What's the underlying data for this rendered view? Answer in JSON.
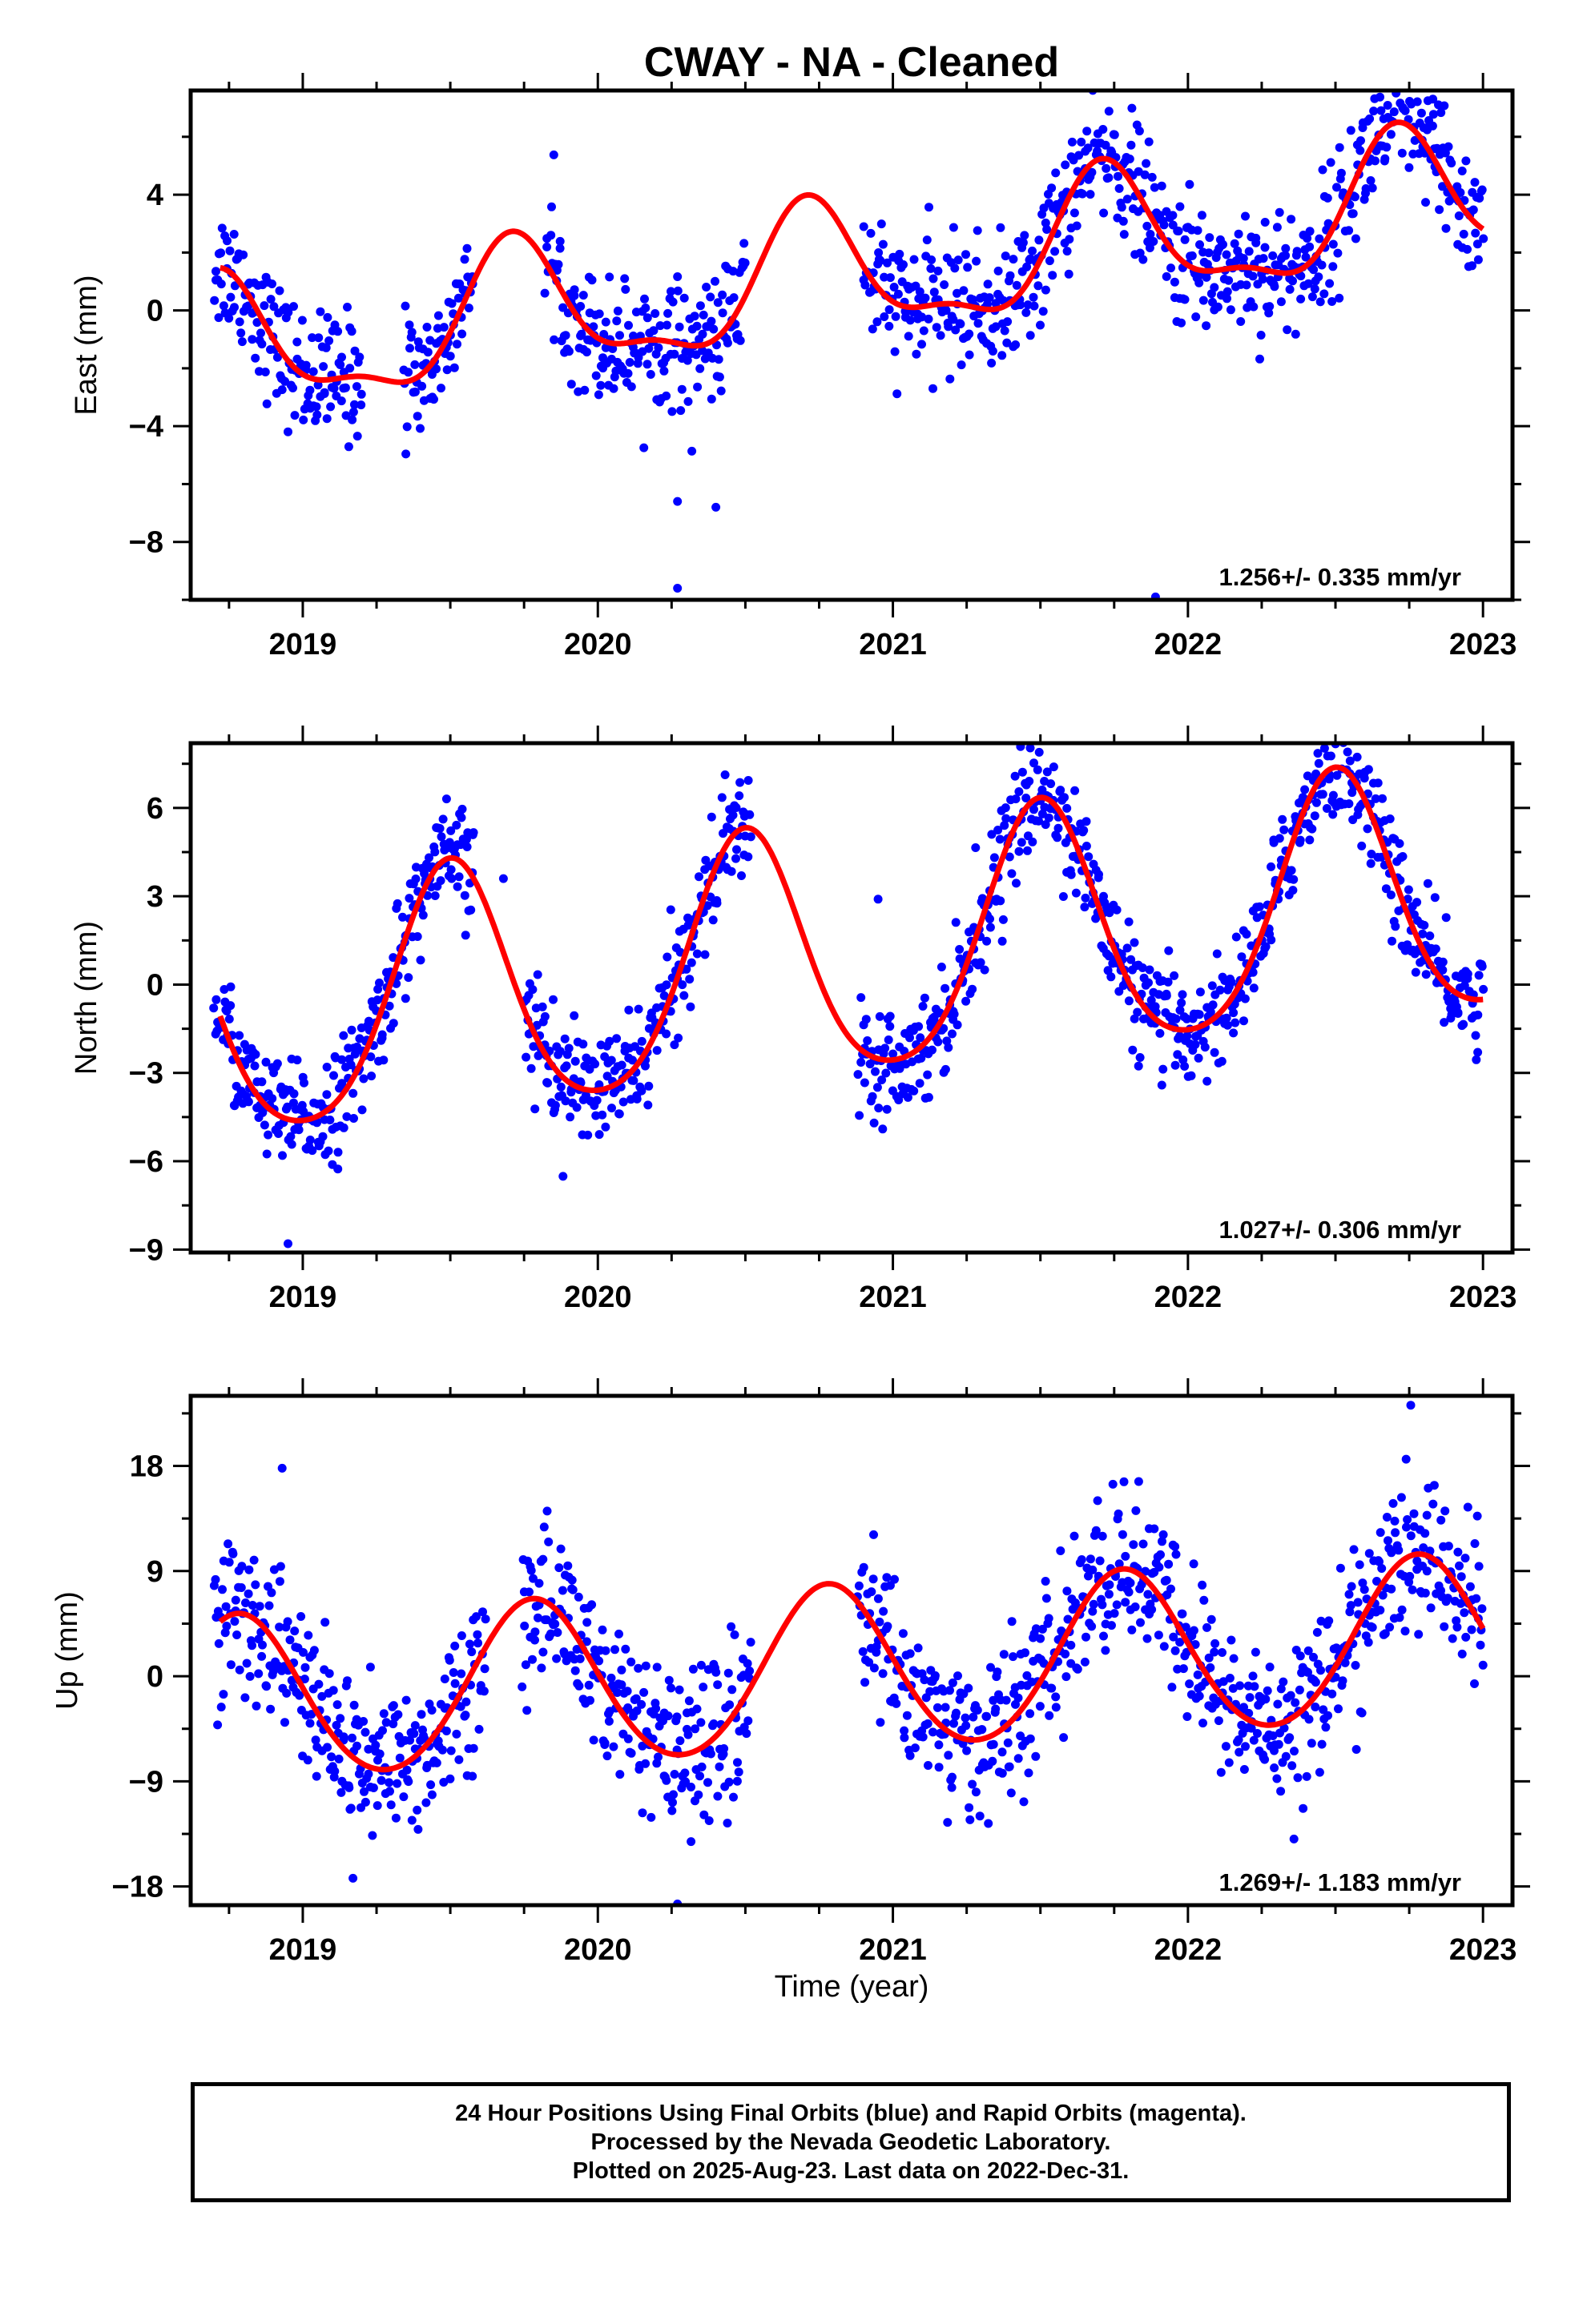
{
  "title": "CWAY  - NA - Cleaned",
  "xlabel": "Time (year)",
  "caption": [
    "24 Hour Positions Using Final Orbits (blue) and Rapid Orbits (magenta).",
    "Processed by the Nevada Geodetic Laboratory.",
    "Plotted on 2025-Aug-23. Last data on 2022-Dec-31."
  ],
  "colors": {
    "points": "#0000ff",
    "fit": "#ff0000",
    "frame": "#000000"
  },
  "chart_data": [
    {
      "type": "scatter",
      "ylabel": "East (mm)",
      "rate": "1.256+/- 0.335 mm/yr",
      "xlim": [
        2018.62,
        2023.1
      ],
      "ylim": [
        -10,
        7.6
      ],
      "xticks": [
        2019,
        2020,
        2021,
        2022,
        2023
      ],
      "xtick_labels": [
        "2019",
        "2020",
        "2021",
        "2022",
        "2023"
      ],
      "yticks": [
        -8,
        -4,
        0,
        4
      ],
      "ytick_labels": [
        "−8",
        "−4",
        "0",
        "4"
      ],
      "series": [
        {
          "kind": "points",
          "x_start": 2018.7,
          "x_end": 2023.0,
          "n": 1250,
          "gaps": [
            [
              2019.2,
              2019.34
            ],
            [
              2019.58,
              2019.82
            ],
            [
              2020.5,
              2020.9
            ]
          ],
          "trend_at_start": -1.5,
          "trend_rate": 1.256,
          "annual_amplitude": 2.2,
          "annual_peak": 2018.72,
          "semiannual_amplitude": 0.8,
          "semiannual_peak": 2018.7,
          "scatter": 1.1,
          "outliers": [
            [
              2020.27,
              -9.6
            ],
            [
              2020.27,
              -6.6
            ],
            [
              2020.4,
              -6.8
            ],
            [
              2021.89,
              -9.9
            ],
            [
              2022.83,
              7.3
            ]
          ]
        },
        {
          "kind": "fit",
          "x_start": 2018.72,
          "x_end": 2023.0,
          "trend_at_start": -1.5,
          "trend_rate": 1.256,
          "annual_amplitude": 2.2,
          "annual_peak": 2018.72,
          "semiannual_amplitude": 0.8,
          "semiannual_peak": 2018.7
        }
      ]
    },
    {
      "type": "scatter",
      "ylabel": "North (mm)",
      "rate": "1.027+/- 0.306 mm/yr",
      "xlim": [
        2018.62,
        2023.1
      ],
      "ylim": [
        -9.1,
        8.2
      ],
      "xticks": [
        2019,
        2020,
        2021,
        2022,
        2023
      ],
      "xtick_labels": [
        "2019",
        "2020",
        "2021",
        "2022",
        "2023"
      ],
      "yticks": [
        -9,
        -6,
        -3,
        0,
        3,
        6
      ],
      "ytick_labels": [
        "−9",
        "−6",
        "−3",
        "0",
        "3",
        "6"
      ],
      "series": [
        {
          "kind": "points",
          "x_start": 2018.7,
          "x_end": 2023.0,
          "n": 1350,
          "gaps": [
            [
              2019.58,
              2019.75
            ],
            [
              2020.52,
              2020.88
            ]
          ],
          "trend_at_start": -1.3,
          "trend_rate": 1.027,
          "annual_amplitude": 4.2,
          "annual_peak": 2019.5,
          "semiannual_amplitude": 0.6,
          "semiannual_peak": 2019.5,
          "scatter": 0.9,
          "outliers": [
            [
              2018.95,
              -8.8
            ],
            [
              2019.68,
              3.6
            ],
            [
              2020.95,
              2.9
            ]
          ]
        },
        {
          "kind": "fit",
          "x_start": 2018.72,
          "x_end": 2023.0,
          "trend_at_start": -1.3,
          "trend_rate": 1.027,
          "annual_amplitude": 4.2,
          "annual_peak": 2019.5,
          "semiannual_amplitude": 0.6,
          "semiannual_peak": 2019.5
        }
      ]
    },
    {
      "type": "scatter",
      "ylabel": "Up (mm)",
      "rate": "1.269+/- 1.183 mm/yr",
      "xlim": [
        2018.62,
        2023.1
      ],
      "ylim": [
        -19.6,
        24
      ],
      "xticks": [
        2019,
        2020,
        2021,
        2022,
        2023
      ],
      "xtick_labels": [
        "2019",
        "2020",
        "2021",
        "2022",
        "2023"
      ],
      "yticks": [
        -18,
        -9,
        0,
        9,
        18
      ],
      "ytick_labels": [
        "−18",
        "−9",
        "0",
        "9",
        "18"
      ],
      "series": [
        {
          "kind": "points",
          "x_start": 2018.7,
          "x_end": 2023.0,
          "n": 1280,
          "gaps": [
            [
              2019.62,
              2019.74
            ],
            [
              2020.52,
              2020.88
            ]
          ],
          "trend_at_start": -2.2,
          "trend_rate": 1.269,
          "annual_amplitude": 7.0,
          "annual_peak": 2019.78,
          "semiannual_amplitude": 0.5,
          "semiannual_peak": 2019.78,
          "scatter": 3.4,
          "outliers": [
            [
              2018.93,
              17.8
            ],
            [
              2019.17,
              -17.3
            ],
            [
              2020.27,
              -19.5
            ],
            [
              2022.83,
              24.6
            ]
          ]
        },
        {
          "kind": "fit",
          "x_start": 2018.72,
          "x_end": 2023.0,
          "trend_at_start": -2.2,
          "trend_rate": 1.269,
          "annual_amplitude": 7.0,
          "annual_peak": 2019.78,
          "semiannual_amplitude": 0.5,
          "semiannual_peak": 2019.78
        }
      ]
    }
  ]
}
